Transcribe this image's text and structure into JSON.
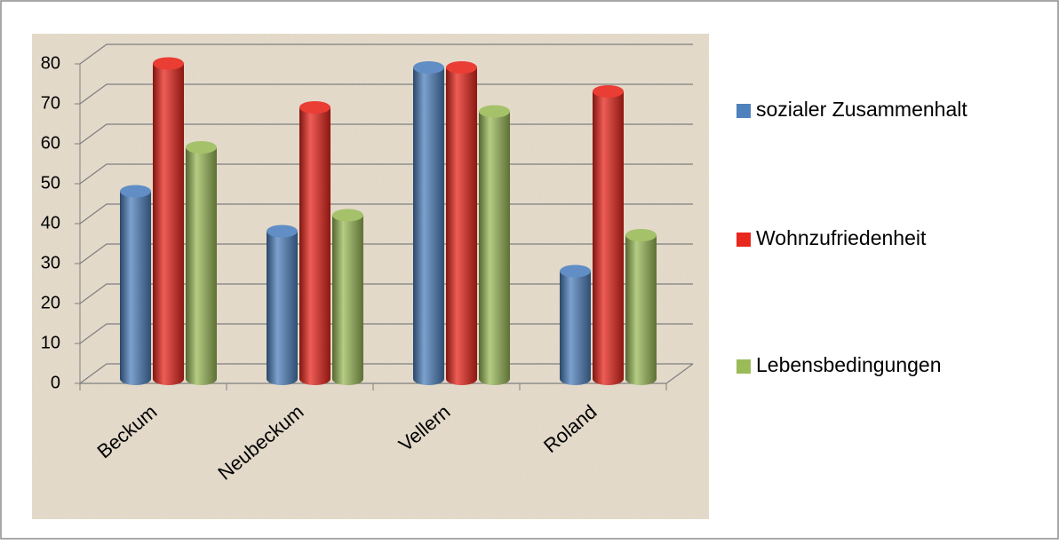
{
  "chart_data": {
    "type": "bar3d",
    "categories": [
      "Beckum",
      "Neubeckum",
      "Vellern",
      "Roland"
    ],
    "series": [
      {
        "name": "sozialer Zusammenhalt",
        "color": "#4f81bd",
        "values": [
          47,
          37,
          78,
          27
        ]
      },
      {
        "name": "Wohnzufriedenheit",
        "color": "#e8271d",
        "values": [
          79,
          68,
          78,
          72
        ]
      },
      {
        "name": "Lebensbedingungen",
        "color": "#9bbb59",
        "values": [
          58,
          41,
          67,
          36
        ]
      }
    ],
    "ylim": [
      0,
      80
    ],
    "yticks": [
      0,
      10,
      20,
      30,
      40,
      50,
      60,
      70,
      80
    ],
    "grid": true,
    "legend": "right"
  }
}
